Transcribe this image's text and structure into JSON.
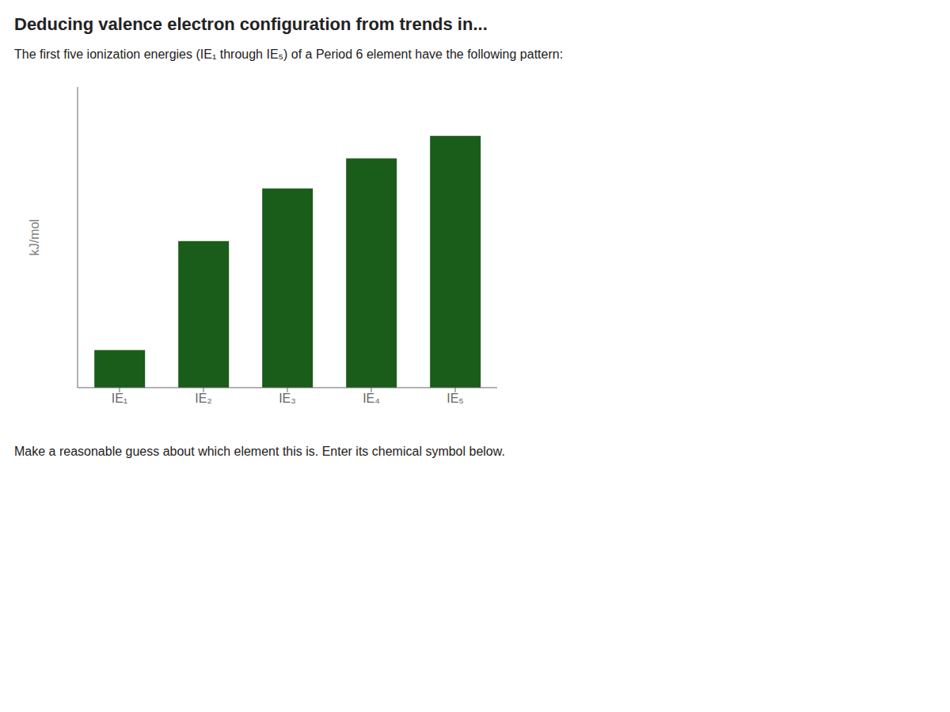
{
  "chart_data": {
    "type": "bar",
    "title": "Deducing valence electron configuration from trends in...",
    "annotations": [
      "The first five ionization energies (IE₁ through IE₅) of a Period 6 element have the following pattern:",
      "Make a reasonable guess about which element this is. Enter its chemical symbol below."
    ],
    "categories": [
      "IE₁",
      "IE₂",
      "IE₃",
      "IE₄",
      "IE₅"
    ],
    "values": [
      1.0,
      3.9,
      5.3,
      6.1,
      6.7
    ],
    "color": "#1a5c1a",
    "ylabel": "kJ/mol",
    "ylim": [
      0,
      8
    ],
    "grid": false,
    "tick_labels": "x"
  }
}
